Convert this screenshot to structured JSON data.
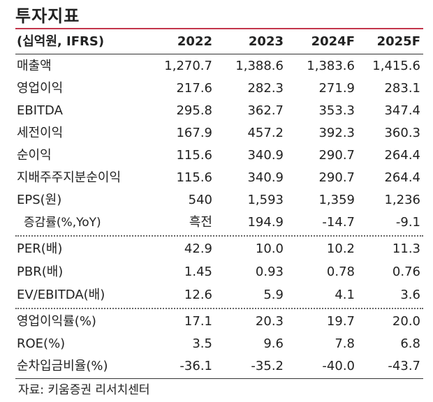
{
  "title": "투자지표",
  "header": {
    "unit": "(십억원, IFRS)",
    "years": [
      "2022",
      "2023",
      "2024F",
      "2025F"
    ]
  },
  "rows": [
    {
      "label": "매출액",
      "values": [
        "1,270.7",
        "1,388.6",
        "1,383.6",
        "1,415.6"
      ]
    },
    {
      "label": "영업이익",
      "values": [
        "217.6",
        "282.3",
        "271.9",
        "283.1"
      ]
    },
    {
      "label": "EBITDA",
      "values": [
        "295.8",
        "362.7",
        "353.3",
        "347.4"
      ]
    },
    {
      "label": "세전이익",
      "values": [
        "167.9",
        "457.2",
        "392.3",
        "360.3"
      ]
    },
    {
      "label": "순이익",
      "values": [
        "115.6",
        "340.9",
        "290.7",
        "264.4"
      ]
    },
    {
      "label": "지배주주지분순이익",
      "values": [
        "115.6",
        "340.9",
        "290.7",
        "264.4"
      ]
    },
    {
      "label": "EPS(원)",
      "values": [
        "540",
        "1,593",
        "1,359",
        "1,236"
      ]
    },
    {
      "label": "증감률(%,YoY)",
      "values": [
        "흑전",
        "194.9",
        "-14.7",
        "-9.1"
      ]
    },
    {
      "label": "PER(배)",
      "values": [
        "42.9",
        "10.0",
        "10.2",
        "11.3"
      ]
    },
    {
      "label": "PBR(배)",
      "values": [
        "1.45",
        "0.93",
        "0.78",
        "0.76"
      ]
    },
    {
      "label": "EV/EBITDA(배)",
      "values": [
        "12.6",
        "5.9",
        "4.1",
        "3.6"
      ]
    },
    {
      "label": "영업이익률(%)",
      "values": [
        "17.1",
        "20.3",
        "19.7",
        "20.0"
      ]
    },
    {
      "label": "ROE(%)",
      "values": [
        "3.5",
        "9.6",
        "7.8",
        "6.8"
      ]
    },
    {
      "label": "순차입금비율(%)",
      "values": [
        "-36.1",
        "-35.2",
        "-40.0",
        "-43.7"
      ]
    }
  ],
  "source": "자료: 키움증권 리서치센터",
  "colors": {
    "accent_rule": "#c2354b"
  }
}
